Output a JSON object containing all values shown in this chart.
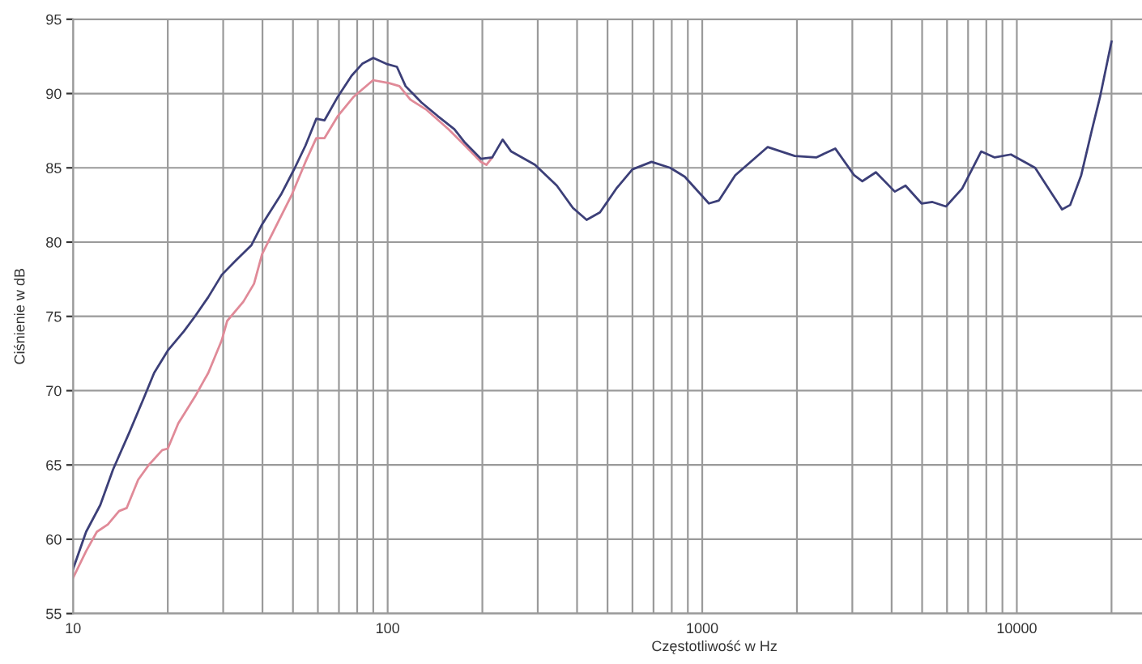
{
  "chart_data": {
    "type": "line",
    "xlabel": "Częstotliwość w Hz",
    "ylabel": "Ciśnienie w dB",
    "log": "x",
    "grid": true,
    "marker": "none",
    "line_style": "solid",
    "xlim": [
      10,
      25000
    ],
    "ylim": [
      55,
      95
    ],
    "xticks": [
      10,
      {
        "value": 20,
        "label": null
      },
      {
        "value": 30,
        "label": null
      },
      {
        "value": 40,
        "label": null
      },
      {
        "value": 50,
        "label": null
      },
      {
        "value": 60,
        "label": null
      },
      {
        "value": 70,
        "label": null
      },
      {
        "value": 80,
        "label": null
      },
      {
        "value": 90,
        "label": null
      },
      100,
      {
        "value": 200,
        "label": null
      },
      {
        "value": 300,
        "label": null
      },
      {
        "value": 400,
        "label": null
      },
      {
        "value": 500,
        "label": null
      },
      {
        "value": 600,
        "label": null
      },
      {
        "value": 700,
        "label": null
      },
      {
        "value": 800,
        "label": null
      },
      {
        "value": 900,
        "label": null
      },
      1000,
      {
        "value": 2000,
        "label": null
      },
      {
        "value": 3000,
        "label": null
      },
      {
        "value": 4000,
        "label": null
      },
      {
        "value": 5000,
        "label": null
      },
      {
        "value": 6000,
        "label": null
      },
      {
        "value": 7000,
        "label": null
      },
      {
        "value": 8000,
        "label": null
      },
      {
        "value": 9000,
        "label": null
      },
      10000,
      {
        "value": 20000,
        "label": null
      }
    ],
    "yticks": [
      55,
      60,
      65,
      70,
      75,
      80,
      85,
      90,
      95
    ],
    "series": [
      {
        "color": "#e08a98",
        "x": [
          10,
          11.0,
          11.9,
          12.9,
          14.0,
          14.8,
          16.1,
          17.4,
          19.2,
          20,
          21.6,
          24.4,
          26.9,
          29.7,
          30.9,
          34.8,
          37.6,
          39.9,
          44,
          49.6,
          54.8,
          59.3,
          63,
          69.5,
          78.1,
          89.9,
          101,
          109,
          118,
          133,
          156,
          176,
          198,
          206,
          215
        ],
        "values": [
          57.4,
          59.2,
          60.5,
          61.0,
          61.9,
          62.1,
          64.0,
          65.0,
          66.0,
          66.1,
          67.8,
          69.6,
          71.2,
          73.4,
          74.7,
          76.0,
          77.2,
          79.2,
          81.0,
          83.2,
          85.4,
          87.0,
          87.0,
          88.5,
          89.8,
          90.9,
          90.7,
          90.5,
          89.6,
          88.9,
          87.6,
          86.5,
          85.4,
          85.2,
          85.7
        ]
      },
      {
        "color": "#3c3f78",
        "x": [
          10,
          11.0,
          12.2,
          13.4,
          15.1,
          16.7,
          18.1,
          20,
          22.5,
          24.4,
          26.9,
          29.7,
          32.7,
          36.9,
          39.9,
          45.8,
          50.7,
          54.8,
          59.3,
          63,
          69.5,
          76.8,
          83,
          90,
          99,
          107,
          114,
          128,
          144,
          163,
          176,
          198,
          215,
          232,
          247,
          294,
          345,
          388,
          429,
          473,
          533,
          600,
          690,
          791,
          880,
          1050,
          1130,
          1273,
          1615,
          1969,
          2303,
          2647,
          3041,
          3228,
          3565,
          4093,
          4428,
          4980,
          5392,
          5955,
          6703,
          7703,
          8505,
          9575,
          11435,
          12620,
          13930,
          14780,
          16020,
          17350,
          18400,
          20000
        ],
        "values": [
          58.0,
          60.5,
          62.3,
          64.7,
          67.2,
          69.4,
          71.2,
          72.7,
          74.0,
          75.0,
          76.3,
          77.8,
          78.7,
          79.8,
          81.2,
          83.2,
          85.0,
          86.5,
          88.3,
          88.2,
          89.8,
          91.2,
          92.0,
          92.4,
          92.0,
          91.8,
          90.5,
          89.4,
          88.5,
          87.6,
          86.7,
          85.6,
          85.7,
          86.9,
          86.1,
          85.2,
          83.8,
          82.3,
          81.5,
          82.0,
          83.6,
          84.9,
          85.4,
          85.0,
          84.4,
          82.6,
          82.8,
          84.5,
          86.4,
          85.8,
          85.7,
          86.3,
          84.5,
          84.1,
          84.7,
          83.4,
          83.8,
          82.6,
          82.7,
          82.4,
          83.6,
          86.1,
          85.7,
          85.9,
          85.0,
          83.6,
          82.2,
          82.5,
          84.5,
          87.6,
          89.8,
          93.5
        ]
      }
    ]
  }
}
